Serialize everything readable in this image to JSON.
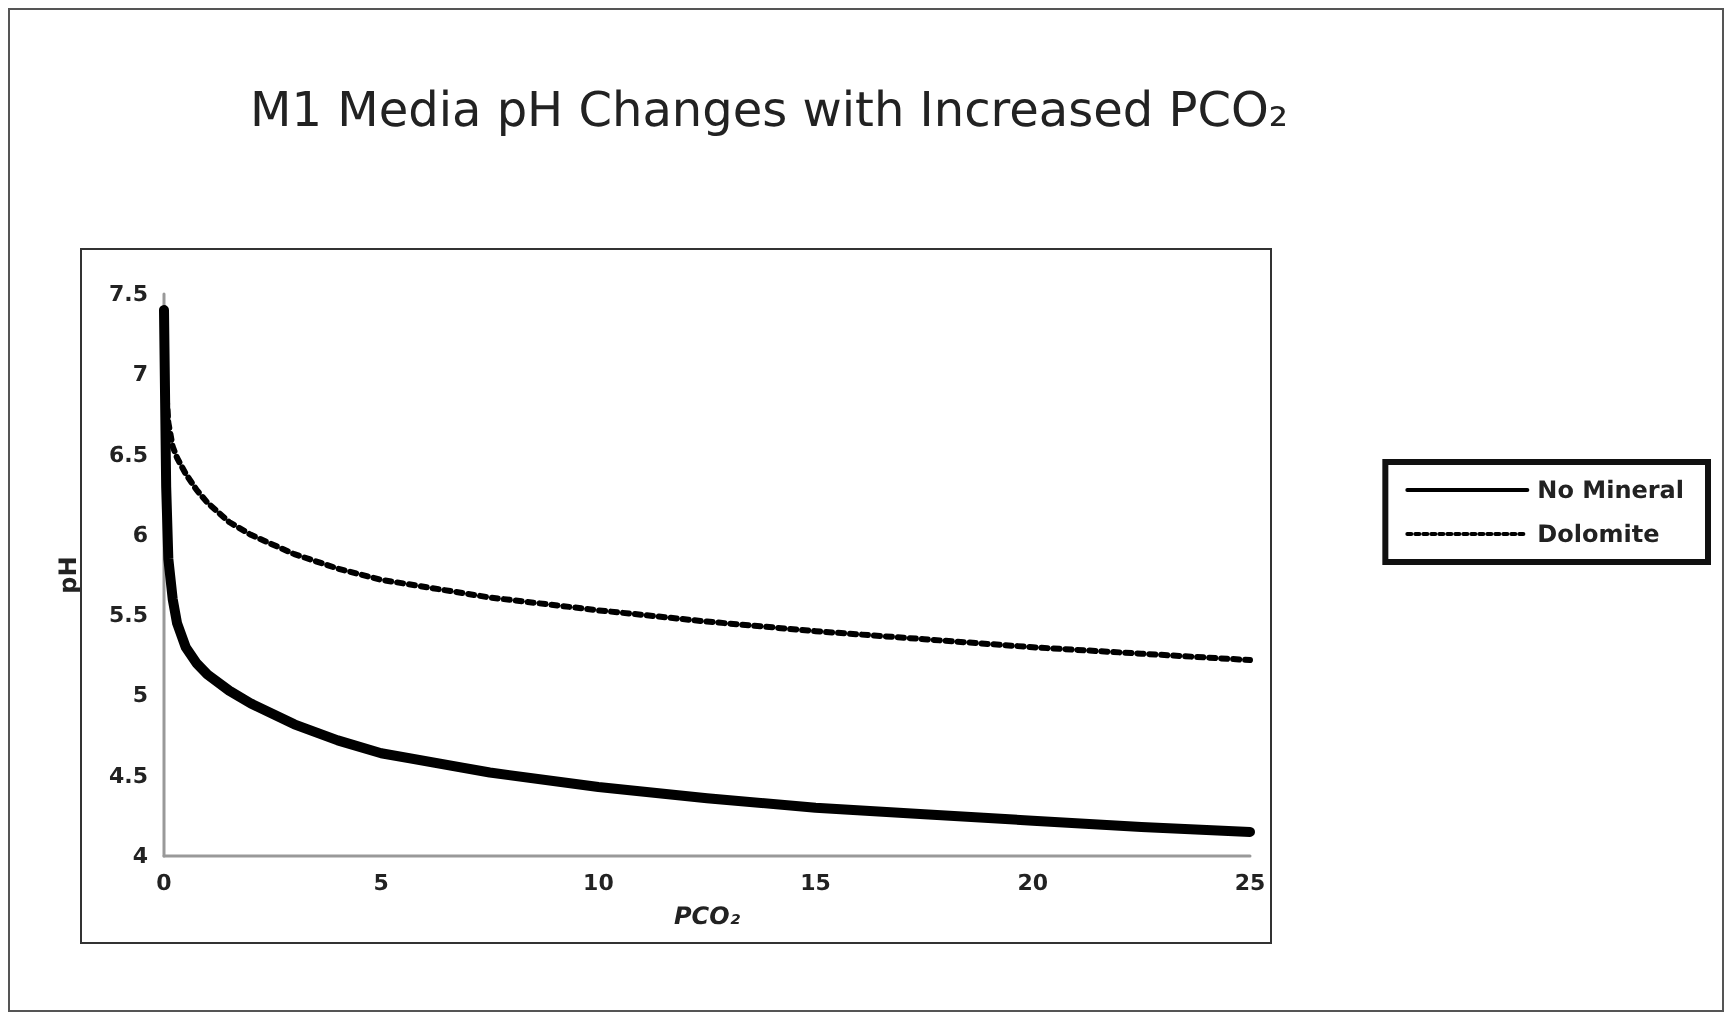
{
  "chart_data": {
    "type": "line",
    "title": "M1 Media pH Changes with Increased PCO₂",
    "xlabel": "PCO₂",
    "ylabel": "pH",
    "xlim": [
      0,
      25
    ],
    "xticks": [
      0,
      5,
      10,
      15,
      20,
      25
    ],
    "ylim": [
      4,
      7.5
    ],
    "yticks": [
      4,
      4.5,
      5,
      5.5,
      6,
      6.5,
      7,
      7.5
    ],
    "legend": "right",
    "marker": "none",
    "grid": false,
    "series": [
      {
        "name": "No Mineral",
        "color": "#000000",
        "line_style": "solid",
        "x": [
          0,
          0.05,
          0.1,
          0.2,
          0.3,
          0.5,
          0.75,
          1,
          1.5,
          2,
          3,
          4,
          5,
          7.5,
          10,
          12.5,
          15,
          17.5,
          20,
          22.5,
          25
        ],
        "values": [
          7.4,
          6.3,
          5.85,
          5.6,
          5.45,
          5.3,
          5.2,
          5.13,
          5.03,
          4.95,
          4.82,
          4.72,
          4.64,
          4.52,
          4.43,
          4.36,
          4.3,
          4.26,
          4.22,
          4.18,
          4.15
        ]
      },
      {
        "name": "Dolomite",
        "color": "#000000",
        "line_style": "dotted",
        "x": [
          0,
          0.05,
          0.1,
          0.2,
          0.3,
          0.5,
          0.75,
          1,
          1.5,
          2,
          3,
          4,
          5,
          7.5,
          10,
          12.5,
          15,
          17.5,
          20,
          22.5,
          25
        ],
        "values": [
          7.3,
          6.9,
          6.7,
          6.55,
          6.48,
          6.38,
          6.28,
          6.2,
          6.08,
          6.0,
          5.88,
          5.79,
          5.72,
          5.61,
          5.53,
          5.46,
          5.4,
          5.35,
          5.3,
          5.26,
          5.22
        ]
      }
    ]
  }
}
